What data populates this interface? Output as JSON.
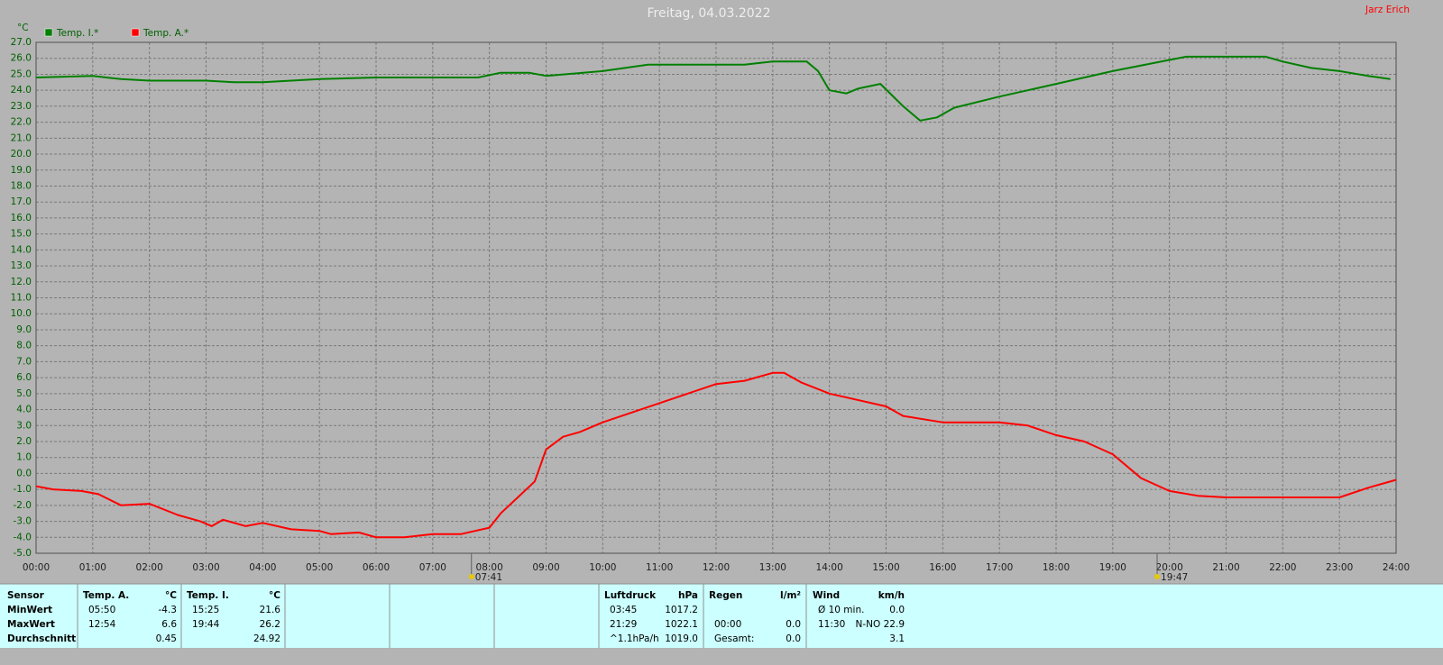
{
  "chart_data": {
    "type": "line",
    "title": "Freitag, 04.03.2022",
    "author": "Jarz Erich",
    "y_unit": "°C",
    "grid": true,
    "xlim": [
      0,
      24
    ],
    "ylim": [
      -5,
      27
    ],
    "xticks": [
      {
        "value": 0,
        "label": "00:00"
      },
      {
        "value": 1,
        "label": "01:00"
      },
      {
        "value": 2,
        "label": "02:00"
      },
      {
        "value": 3,
        "label": "03:00"
      },
      {
        "value": 4,
        "label": "04:00"
      },
      {
        "value": 5,
        "label": "05:00"
      },
      {
        "value": 6,
        "label": "06:00"
      },
      {
        "value": 7,
        "label": "07:00"
      },
      {
        "value": 8,
        "label": "08:00"
      },
      {
        "value": 9,
        "label": "09:00"
      },
      {
        "value": 10,
        "label": "10:00"
      },
      {
        "value": 11,
        "label": "11:00"
      },
      {
        "value": 12,
        "label": "12:00"
      },
      {
        "value": 13,
        "label": "13:00"
      },
      {
        "value": 14,
        "label": "14:00"
      },
      {
        "value": 15,
        "label": "15:00"
      },
      {
        "value": 16,
        "label": "16:00"
      },
      {
        "value": 17,
        "label": "17:00"
      },
      {
        "value": 18,
        "label": "18:00"
      },
      {
        "value": 19,
        "label": "19:00"
      },
      {
        "value": 20,
        "label": "20:00"
      },
      {
        "value": 21,
        "label": "21:00"
      },
      {
        "value": 22,
        "label": "22:00"
      },
      {
        "value": 23,
        "label": "23:00"
      },
      {
        "value": 24,
        "label": "24:00"
      }
    ],
    "yticks": [
      {
        "value": -5,
        "label": "-5.0"
      },
      {
        "value": -4,
        "label": "-4.0"
      },
      {
        "value": -3,
        "label": "-3.0"
      },
      {
        "value": -2,
        "label": "-2.0"
      },
      {
        "value": -1,
        "label": "-1.0"
      },
      {
        "value": 0,
        "label": "0.0"
      },
      {
        "value": 1,
        "label": "1.0"
      },
      {
        "value": 2,
        "label": "2.0"
      },
      {
        "value": 3,
        "label": "3.0"
      },
      {
        "value": 4,
        "label": "4.0"
      },
      {
        "value": 5,
        "label": "5.0"
      },
      {
        "value": 6,
        "label": "6.0"
      },
      {
        "value": 7,
        "label": "7.0"
      },
      {
        "value": 8,
        "label": "8.0"
      },
      {
        "value": 9,
        "label": "9.0"
      },
      {
        "value": 10,
        "label": "10.0"
      },
      {
        "value": 11,
        "label": "11.0"
      },
      {
        "value": 12,
        "label": "12.0"
      },
      {
        "value": 13,
        "label": "13.0"
      },
      {
        "value": 14,
        "label": "14.0"
      },
      {
        "value": 15,
        "label": "15.0"
      },
      {
        "value": 16,
        "label": "16.0"
      },
      {
        "value": 17,
        "label": "17.0"
      },
      {
        "value": 18,
        "label": "18.0"
      },
      {
        "value": 19,
        "label": "19.0"
      },
      {
        "value": 20,
        "label": "20.0"
      },
      {
        "value": 21,
        "label": "21.0"
      },
      {
        "value": 22,
        "label": "22.0"
      },
      {
        "value": 23,
        "label": "23.0"
      },
      {
        "value": 24,
        "label": "24.0"
      },
      {
        "value": 25,
        "label": "25.0"
      },
      {
        "value": 26,
        "label": "26.0"
      },
      {
        "value": 27,
        "label": "27.0"
      }
    ],
    "markers": [
      {
        "value": 7.683,
        "label": "07:41"
      },
      {
        "value": 19.783,
        "label": "19:47"
      }
    ],
    "series": [
      {
        "name": "Temp. I.*",
        "color": "#008000",
        "x": [
          0,
          1,
          1.5,
          2,
          3,
          3.5,
          4,
          5,
          6,
          7,
          7.8,
          8.2,
          8.7,
          9,
          10,
          10.8,
          12,
          12.5,
          13,
          13.6,
          13.8,
          14,
          14.3,
          14.5,
          14.9,
          15.3,
          15.6,
          15.9,
          16.2,
          17,
          17.5,
          18,
          19,
          20,
          20.3,
          21,
          21.7,
          22,
          22.5,
          23,
          23.5,
          23.9
        ],
        "values": [
          24.8,
          24.9,
          24.7,
          24.6,
          24.6,
          24.5,
          24.5,
          24.7,
          24.8,
          24.8,
          24.8,
          25.1,
          25.1,
          24.9,
          25.2,
          25.6,
          25.6,
          25.6,
          25.8,
          25.8,
          25.2,
          24.0,
          23.8,
          24.1,
          24.4,
          23.0,
          22.1,
          22.3,
          22.9,
          23.6,
          24.0,
          24.4,
          25.2,
          25.9,
          26.1,
          26.1,
          26.1,
          25.8,
          25.4,
          25.2,
          24.9,
          24.7
        ]
      },
      {
        "name": "Temp. A.*",
        "color": "#ff0000",
        "x": [
          0,
          0.3,
          0.8,
          1.1,
          1.5,
          2,
          2.5,
          2.9,
          3.1,
          3.3,
          3.7,
          4,
          4.5,
          5,
          5.2,
          5.7,
          6,
          6.5,
          7,
          7.5,
          8,
          8.2,
          8.5,
          8.8,
          9,
          9.3,
          9.6,
          10,
          11,
          12,
          12.5,
          13,
          13.2,
          13.5,
          14,
          15,
          15.3,
          16,
          17,
          17.5,
          18,
          18.5,
          19,
          19.5,
          20,
          20.5,
          21,
          22,
          23,
          23.5,
          24
        ],
        "values": [
          -0.8,
          -1.0,
          -1.1,
          -1.3,
          -2.0,
          -1.9,
          -2.6,
          -3.0,
          -3.3,
          -2.9,
          -3.3,
          -3.1,
          -3.5,
          -3.6,
          -3.8,
          -3.7,
          -4.0,
          -4.0,
          -3.8,
          -3.8,
          -3.4,
          -2.5,
          -1.5,
          -0.5,
          1.5,
          2.3,
          2.6,
          3.2,
          4.4,
          5.6,
          5.8,
          6.3,
          6.3,
          5.7,
          5.0,
          4.2,
          3.6,
          3.2,
          3.2,
          3.0,
          2.4,
          2.0,
          1.2,
          -0.3,
          -1.1,
          -1.4,
          -1.5,
          -1.5,
          -1.5,
          -0.9,
          -0.4
        ]
      }
    ]
  },
  "table": {
    "sensor": {
      "header": "Sensor",
      "rows": [
        "MinWert",
        "MaxWert",
        "Durchschnitt"
      ]
    },
    "blocks": [
      {
        "header": [
          "Temp. A.",
          "°C"
        ],
        "rows": [
          [
            "05:50",
            "-4.3"
          ],
          [
            "12:54",
            "6.6"
          ],
          [
            null,
            "0.45"
          ]
        ]
      },
      {
        "header": [
          "Temp. I.",
          "°C"
        ],
        "rows": [
          [
            "15:25",
            "21.6"
          ],
          [
            "19:44",
            "26.2"
          ],
          [
            null,
            "24.92"
          ]
        ]
      },
      {
        "header": [
          "Luftdruck",
          "hPa"
        ],
        "rows": [
          [
            "03:45",
            "1017.2"
          ],
          [
            "21:29",
            "1022.1"
          ],
          [
            "^1.1hPa/h",
            "1019.0"
          ]
        ]
      },
      {
        "header": [
          "Regen",
          "l/m²"
        ],
        "rows": [
          [
            null,
            null
          ],
          [
            "00:00",
            "0.0"
          ],
          [
            "Gesamt:",
            "0.0"
          ]
        ]
      },
      {
        "header": [
          "Wind",
          "km/h"
        ],
        "rows": [
          [
            "Ø 10 min.",
            "0.0"
          ],
          [
            "11:30",
            "N-NO 22.9"
          ],
          [
            null,
            "3.1"
          ]
        ]
      }
    ]
  }
}
